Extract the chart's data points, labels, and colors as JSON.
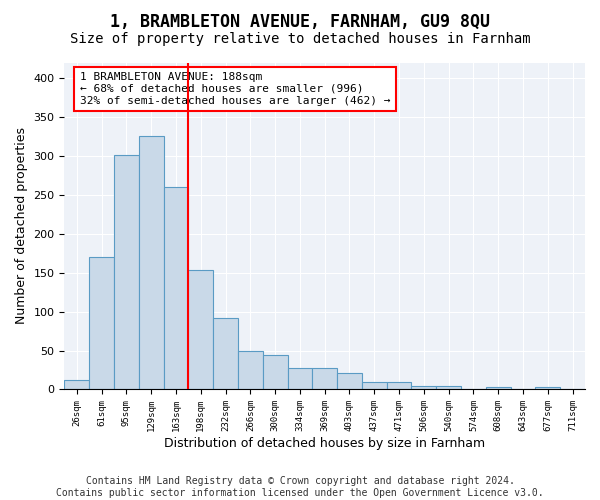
{
  "title": "1, BRAMBLETON AVENUE, FARNHAM, GU9 8QU",
  "subtitle": "Size of property relative to detached houses in Farnham",
  "xlabel": "Distribution of detached houses by size in Farnham",
  "ylabel": "Number of detached properties",
  "bin_labels": [
    "26sqm",
    "61sqm",
    "95sqm",
    "129sqm",
    "163sqm",
    "198sqm",
    "232sqm",
    "266sqm",
    "300sqm",
    "334sqm",
    "369sqm",
    "403sqm",
    "437sqm",
    "471sqm",
    "506sqm",
    "540sqm",
    "574sqm",
    "608sqm",
    "643sqm",
    "677sqm",
    "711sqm"
  ],
  "bar_heights": [
    12,
    170,
    301,
    325,
    260,
    153,
    92,
    50,
    44,
    27,
    27,
    21,
    10,
    10,
    4,
    4,
    0,
    3,
    0,
    3,
    0
  ],
  "bar_color": "#c9d9e8",
  "bar_edge_color": "#5a9bc4",
  "red_line_x": 5.0,
  "annotation_box_text": "1 BRAMBLETON AVENUE: 188sqm\n← 68% of detached houses are smaller (996)\n32% of semi-detached houses are larger (462) →",
  "ylim": [
    0,
    420
  ],
  "yticks": [
    0,
    50,
    100,
    150,
    200,
    250,
    300,
    350,
    400
  ],
  "bg_color": "#eef2f8",
  "footer_line1": "Contains HM Land Registry data © Crown copyright and database right 2024.",
  "footer_line2": "Contains public sector information licensed under the Open Government Licence v3.0.",
  "title_fontsize": 12,
  "subtitle_fontsize": 10,
  "xlabel_fontsize": 9,
  "ylabel_fontsize": 9,
  "annotation_fontsize": 8,
  "footer_fontsize": 7
}
